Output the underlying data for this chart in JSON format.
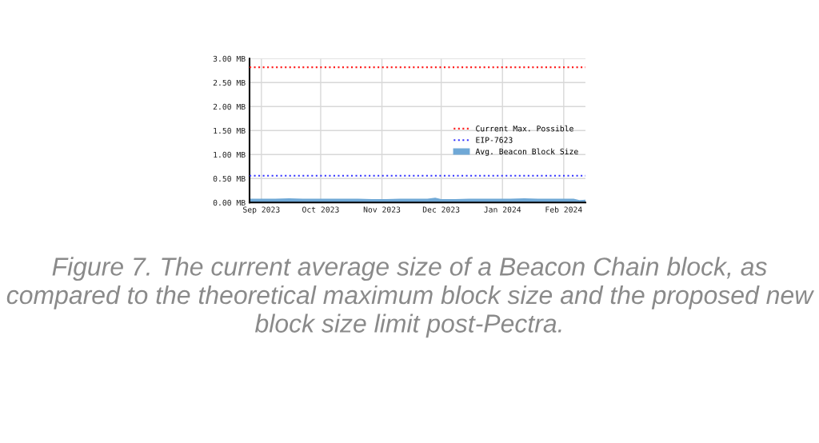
{
  "chart_data": {
    "type": "area",
    "x": [
      "2023-08-26",
      "2023-09-01",
      "2023-09-08",
      "2023-09-15",
      "2023-09-22",
      "2023-09-29",
      "2023-10-06",
      "2023-10-13",
      "2023-10-20",
      "2023-10-27",
      "2023-11-03",
      "2023-11-10",
      "2023-11-17",
      "2023-11-24",
      "2023-11-28",
      "2023-12-01",
      "2023-12-08",
      "2023-12-15",
      "2023-12-22",
      "2023-12-29",
      "2024-01-05",
      "2024-01-12",
      "2024-01-19",
      "2024-01-26",
      "2024-02-02",
      "2024-02-06",
      "2024-02-09",
      "2024-02-12"
    ],
    "series": [
      {
        "name": "Avg. Beacon Block Size",
        "color": "#6fa8d6",
        "values": [
          0.08,
          0.08,
          0.08,
          0.09,
          0.08,
          0.08,
          0.08,
          0.08,
          0.08,
          0.07,
          0.07,
          0.08,
          0.08,
          0.08,
          0.1,
          0.07,
          0.07,
          0.08,
          0.08,
          0.08,
          0.08,
          0.09,
          0.08,
          0.08,
          0.08,
          0.08,
          0.05,
          0.06
        ]
      }
    ],
    "ref_lines": [
      {
        "axis": "y",
        "value": 2.82,
        "label": "Current Max. Possible",
        "color": "#ff2020",
        "line_style": "dotted"
      },
      {
        "axis": "y",
        "value": 0.56,
        "label": "EIP-7623",
        "color": "#3333ff",
        "line_style": "dotted"
      }
    ],
    "xlim": [
      "2023-08-26",
      "2024-02-12"
    ],
    "xticks": [
      {
        "value": "2023-09-01",
        "label": "Sep 2023"
      },
      {
        "value": "2023-10-01",
        "label": "Oct 2023"
      },
      {
        "value": "2023-11-01",
        "label": "Nov 2023"
      },
      {
        "value": "2023-12-01",
        "label": "Dec 2023"
      },
      {
        "value": "2024-01-01",
        "label": "Jan 2024"
      },
      {
        "value": "2024-02-01",
        "label": "Feb 2024"
      }
    ],
    "ylim": [
      0,
      3
    ],
    "yticks": [
      {
        "value": 0,
        "label": "0.00 MB"
      },
      {
        "value": 0.5,
        "label": "0.50 MB"
      },
      {
        "value": 1,
        "label": "1.00 MB"
      },
      {
        "value": 1.5,
        "label": "1.50 MB"
      },
      {
        "value": 2,
        "label": "2.00 MB"
      },
      {
        "value": 2.5,
        "label": "2.50 MB"
      },
      {
        "value": 3,
        "label": "3.00 MB"
      }
    ],
    "grid": true,
    "legend": "right",
    "annotations": [
      "Figure 7. The current average size of a Beacon Chain block, as compared to the theoretical maximum block size and the proposed new block size limit post-Pectra."
    ]
  }
}
